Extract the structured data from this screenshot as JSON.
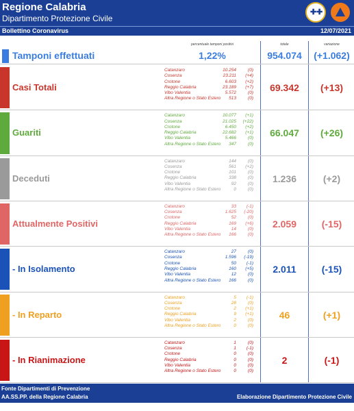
{
  "header": {
    "title": "Regione Calabria",
    "subtitle": "Dipartimento Protezione Civile",
    "bulletin": "Bollettino Coronavirus",
    "date": "12/07/2021"
  },
  "columns": {
    "percent_label": "percentuale tamponi positivi",
    "total_label": "totale",
    "variation_label": "variazione"
  },
  "tamponi": {
    "label": "Tamponi effettuati",
    "percent": "1,22%",
    "total": "954.074",
    "variation": "(+1.062)"
  },
  "sections": [
    {
      "label": "Casi Totali",
      "color": "#c8352b",
      "total": "69.342",
      "variation": "(+13)",
      "rows": [
        {
          "name": "Catanzaro",
          "value": "10.254",
          "delta": "(0)"
        },
        {
          "name": "Cosenza",
          "value": "23.211",
          "delta": "(+4)"
        },
        {
          "name": "Crotone",
          "value": "6.603",
          "delta": "(+2)"
        },
        {
          "name": "Reggio Calabria",
          "value": "23.189",
          "delta": "(+7)"
        },
        {
          "name": "Vibo Valentia",
          "value": "5.572",
          "delta": "(0)"
        },
        {
          "name": "Altra Regione o Stato Estero",
          "value": "513",
          "delta": "(0)"
        }
      ]
    },
    {
      "label": "Guariti",
      "color": "#5faa3c",
      "total": "66.047",
      "variation": "(+26)",
      "rows": [
        {
          "name": "Catanzaro",
          "value": "10.077",
          "delta": "(+1)"
        },
        {
          "name": "Cosenza",
          "value": "21.025",
          "delta": "(+22)"
        },
        {
          "name": "Crotone",
          "value": "6.450",
          "delta": "(+2)"
        },
        {
          "name": "Reggio Calabria",
          "value": "22.682",
          "delta": "(+1)"
        },
        {
          "name": "Vibo Valentia",
          "value": "5.466",
          "delta": "(0)"
        },
        {
          "name": "Altra Regione o Stato Estero",
          "value": "347",
          "delta": "(0)"
        }
      ]
    },
    {
      "label": "Deceduti",
      "color": "#9a9a9a",
      "total": "1.236",
      "variation": "(+2)",
      "rows": [
        {
          "name": "Catanzaro",
          "value": "144",
          "delta": "(0)"
        },
        {
          "name": "Cosenza",
          "value": "561",
          "delta": "(+2)"
        },
        {
          "name": "Crotone",
          "value": "101",
          "delta": "(0)"
        },
        {
          "name": "Reggio Calabria",
          "value": "338",
          "delta": "(0)"
        },
        {
          "name": "Vibo Valentia",
          "value": "92",
          "delta": "(0)"
        },
        {
          "name": "Altra Regione o Stato Estero",
          "value": "0",
          "delta": "(0)"
        }
      ]
    },
    {
      "label": "Attualmente Positivi",
      "color": "#e06565",
      "total": "2.059",
      "variation": "(-15)",
      "rows": [
        {
          "name": "Catanzaro",
          "value": "33",
          "delta": "(-1)"
        },
        {
          "name": "Cosenza",
          "value": "1.625",
          "delta": "(-20)"
        },
        {
          "name": "Crotone",
          "value": "52",
          "delta": "(0)"
        },
        {
          "name": "Reggio Calabria",
          "value": "169",
          "delta": "(+6)"
        },
        {
          "name": "Vibo Valentia",
          "value": "14",
          "delta": "(0)"
        },
        {
          "name": "Altra Regione o Stato Estero",
          "value": "166",
          "delta": "(0)"
        }
      ]
    },
    {
      "label": "- In Isolamento",
      "color": "#1a52b8",
      "total": "2.011",
      "variation": "(-15)",
      "rows": [
        {
          "name": "Catanzaro",
          "value": "27",
          "delta": "(0)"
        },
        {
          "name": "Cosenza",
          "value": "1.596",
          "delta": "(-19)"
        },
        {
          "name": "Crotone",
          "value": "50",
          "delta": "(-1)"
        },
        {
          "name": "Reggio Calabria",
          "value": "160",
          "delta": "(+5)"
        },
        {
          "name": "Vibo Valentia",
          "value": "12",
          "delta": "(0)"
        },
        {
          "name": "Altra Regione o Stato Estero",
          "value": "166",
          "delta": "(0)"
        }
      ]
    },
    {
      "label": "- In Reparto",
      "color": "#f0a020",
      "total": "46",
      "variation": "(+1)",
      "rows": [
        {
          "name": "Catanzaro",
          "value": "5",
          "delta": "(-1)"
        },
        {
          "name": "Cosenza",
          "value": "28",
          "delta": "(0)"
        },
        {
          "name": "Crotone",
          "value": "2",
          "delta": "(+1)"
        },
        {
          "name": "Reggio Calabria",
          "value": "9",
          "delta": "(+1)"
        },
        {
          "name": "Vibo Valentia",
          "value": "2",
          "delta": "(0)"
        },
        {
          "name": "Altra Regione o Stato Estero",
          "value": "0",
          "delta": "(0)"
        }
      ]
    },
    {
      "label": "- In Rianimazione",
      "color": "#c81616",
      "total": "2",
      "variation": "(-1)",
      "rows": [
        {
          "name": "Catanzaro",
          "value": "1",
          "delta": "(0)"
        },
        {
          "name": "Cosenza",
          "value": "1",
          "delta": "(-1)"
        },
        {
          "name": "Crotone",
          "value": "0",
          "delta": "(0)"
        },
        {
          "name": "Reggio Calabria",
          "value": "0",
          "delta": "(0)"
        },
        {
          "name": "Vibo Valentia",
          "value": "0",
          "delta": "(0)"
        },
        {
          "name": "Altra Regione o Stato Estero",
          "value": "0",
          "delta": "(0)"
        }
      ]
    }
  ],
  "footer": {
    "source_line1": "Fonte Dipartimenti di Prevenzione",
    "source_line2": "AA.SS.PP. della Regione Calabria",
    "credit": "Elaborazione Dipartimento Protezione Civile"
  }
}
